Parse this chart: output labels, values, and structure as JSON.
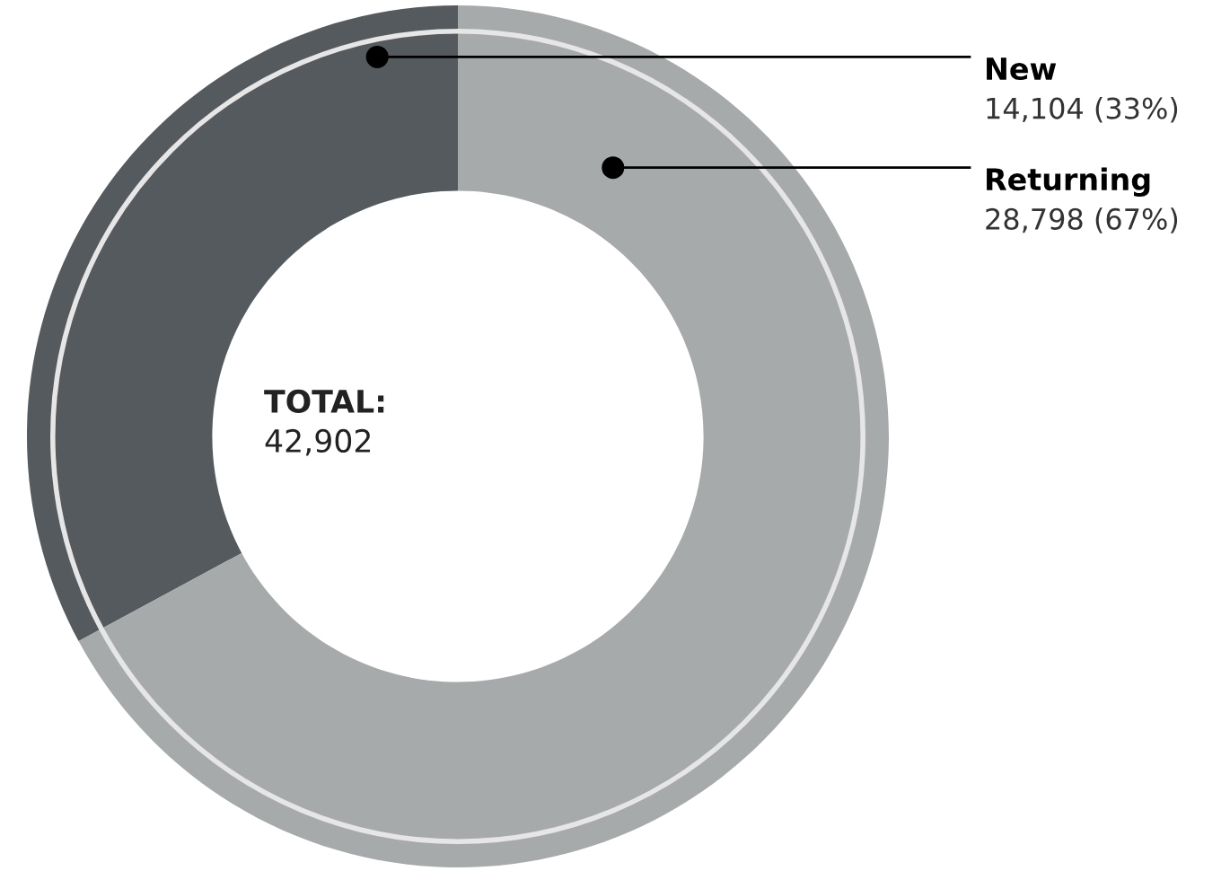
{
  "chart_data": {
    "type": "donut",
    "categories": [
      "New",
      "Returning"
    ],
    "values": [
      14104,
      28798
    ],
    "colors": [
      "#545a5d",
      "#a7aaab"
    ],
    "value_labels": [
      "14,104 (33%)",
      "28,798 (67%)"
    ],
    "annotations": [
      "TOTAL:",
      "42,902"
    ],
    "legend": false
  }
}
